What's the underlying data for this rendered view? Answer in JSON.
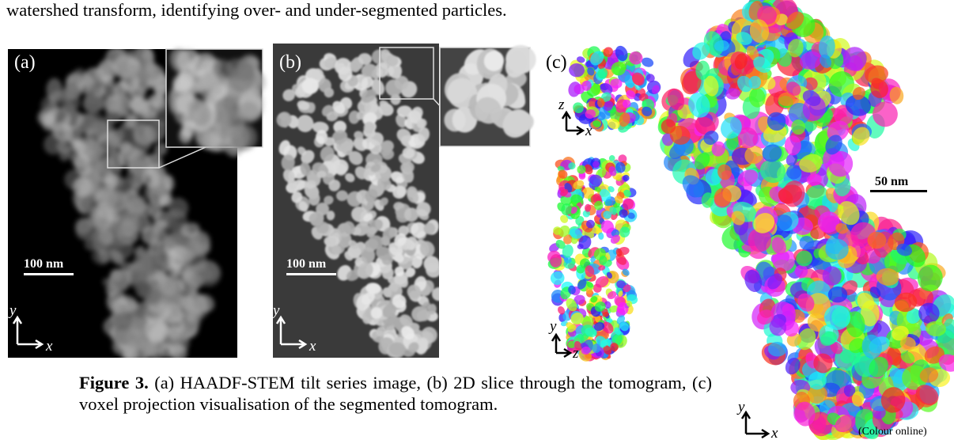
{
  "body_text": "watershed transform, identifying over- and under-segmented particles.",
  "figure": {
    "panels": [
      {
        "label": "(a)",
        "scale_bar": "100 nm",
        "axes": [
          "y",
          "x"
        ]
      },
      {
        "label": "(b)",
        "scale_bar": "100 nm",
        "axes": [
          "y",
          "x"
        ]
      },
      {
        "label": "(c)",
        "scale_bar": "50 nm",
        "views": [
          {
            "axes": [
              "z",
              "x"
            ]
          },
          {
            "axes": [
              "y",
              "z"
            ]
          },
          {
            "axes": [
              "y",
              "x"
            ]
          }
        ]
      }
    ],
    "caption": {
      "label": "Figure 3.",
      "text": "(a) HAADF-STEM tilt series image, (b) 2D slice through the tomogram, (c) voxel projection visualisation of the segmented tomogram."
    },
    "note": "(Colour online)"
  }
}
